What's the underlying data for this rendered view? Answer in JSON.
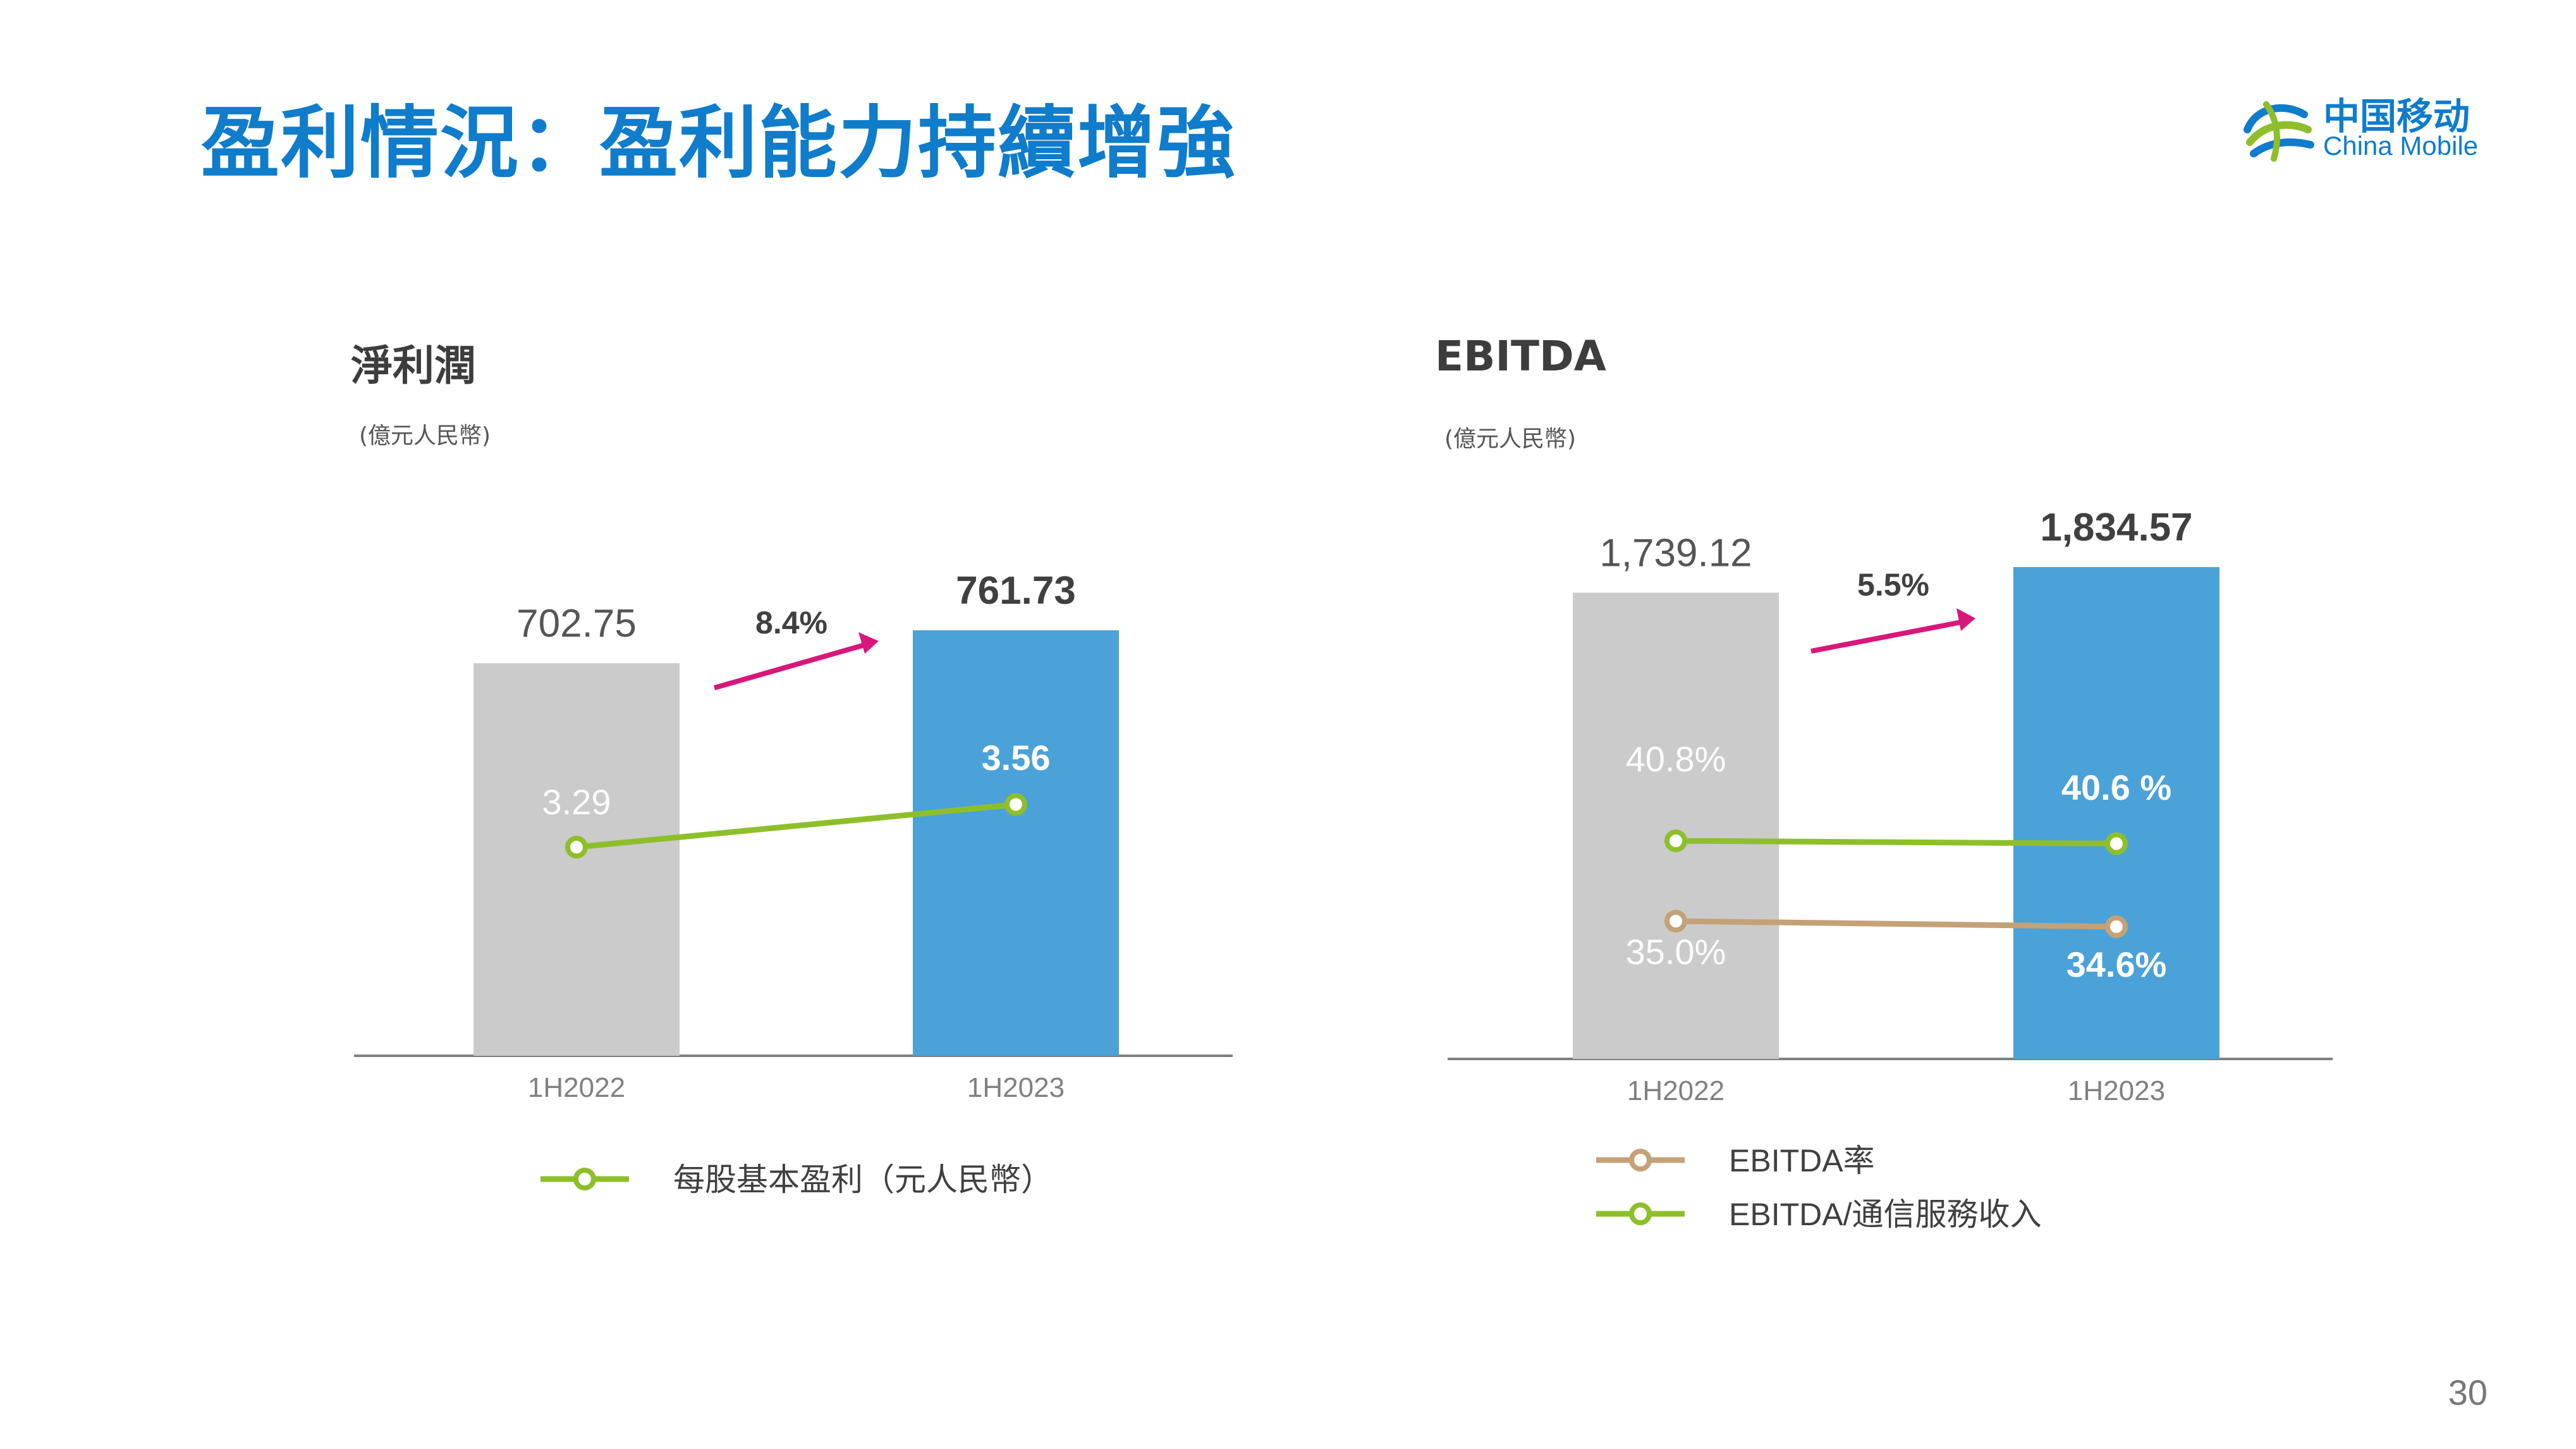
{
  "slide": {
    "title": "盈利情況：盈利能力持續增強",
    "page_number": "30"
  },
  "logo": {
    "name_cn": "中国移动",
    "name_en": "China Mobile",
    "brand_color": "#0f7ccc"
  },
  "colors": {
    "bar_prior": "#cbcbcb",
    "bar_current": "#4aa2d8",
    "line_green": "#8ebf2a",
    "line_tan": "#c4a277",
    "arrow": "#d9177a",
    "axis": "#808080"
  },
  "chart_data": [
    {
      "type": "bar",
      "title": "淨利潤",
      "unit": "(億元人民幣)",
      "categories": [
        "1H2022",
        "1H2023"
      ],
      "bars": {
        "values": [
          702.75,
          761.73
        ],
        "labels": [
          "702.75",
          "761.73"
        ]
      },
      "growth_label": "8.4%",
      "lines": [
        {
          "name": "每股基本盈利（元人民幣）",
          "values": [
            3.29,
            3.56
          ],
          "labels": [
            "3.29",
            "3.56"
          ],
          "color": "#8ebf2a"
        }
      ]
    },
    {
      "type": "bar",
      "title": "EBITDA",
      "unit": "(億元人民幣)",
      "categories": [
        "1H2022",
        "1H2023"
      ],
      "bars": {
        "values": [
          1739.12,
          1834.57
        ],
        "labels": [
          "1,739.12",
          "1,834.57"
        ]
      },
      "growth_label": "5.5%",
      "lines": [
        {
          "name": "EBITDA/通信服務收入",
          "values": [
            40.8,
            40.6
          ],
          "labels": [
            "40.8%",
            "40.6 %"
          ],
          "color": "#8ebf2a"
        },
        {
          "name": "EBITDA率",
          "values": [
            35.0,
            34.6
          ],
          "labels": [
            "35.0%",
            "34.6%"
          ],
          "color": "#c4a277"
        }
      ]
    }
  ]
}
